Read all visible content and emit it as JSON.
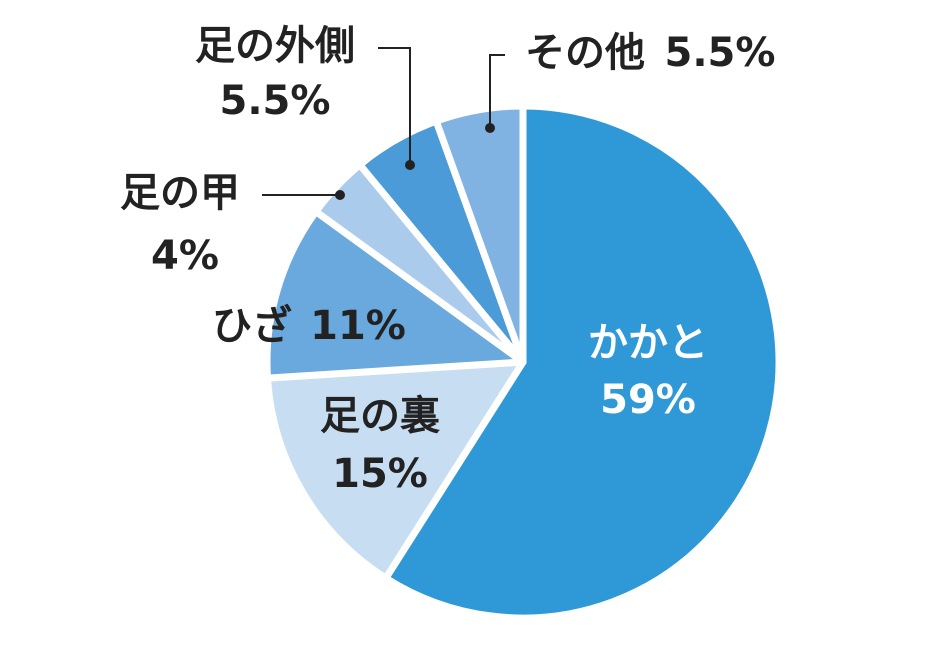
{
  "chart_data": {
    "type": "pie",
    "categories": [
      "かかと",
      "足の裏",
      "ひざ",
      "足の甲",
      "足の外側",
      "その他"
    ],
    "values": [
      59,
      15,
      11,
      4,
      5.5,
      5.5
    ],
    "value_labels": [
      "59%",
      "15%",
      "11%",
      "4%",
      "5.5%",
      "5.5%"
    ],
    "colors": [
      "#2f98d6",
      "#c7ddf1",
      "#6aa9dd",
      "#aacbeb",
      "#4b9bd8",
      "#80b3e1"
    ]
  }
}
